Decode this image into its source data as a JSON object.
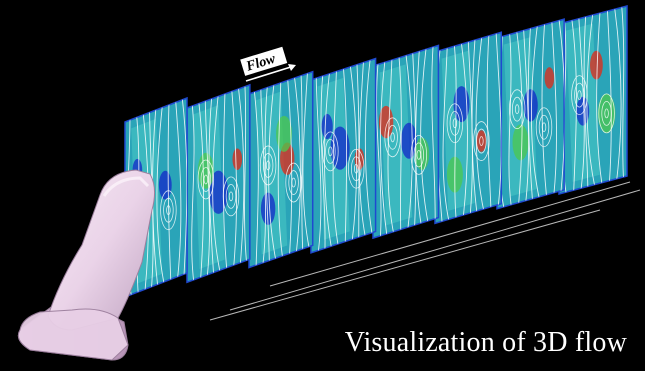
{
  "flow_label": "Flow",
  "caption": "Visualization of 3D flow",
  "colors": {
    "background": "#000000",
    "slice_base": "#2aa4b8",
    "slice_light": "#4fd0c8",
    "streamline": "#ffffff",
    "vortex_low": "#1428c8",
    "vortex_high": "#e62814",
    "mid_green": "#4ec84e",
    "body": "#ead3e8",
    "frame": "#1f49d0"
  },
  "slice_count": 8
}
